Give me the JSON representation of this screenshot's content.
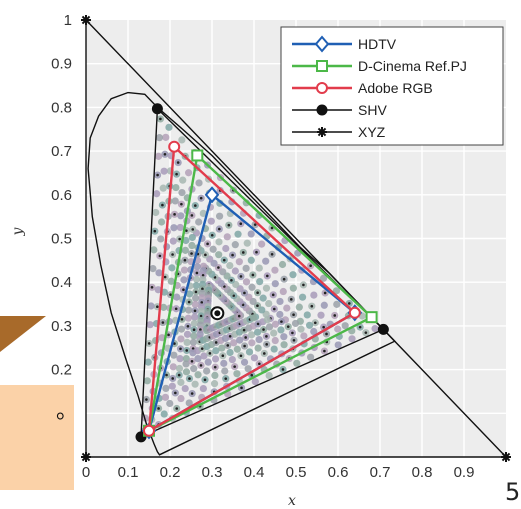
{
  "chart_data": {
    "type": "line",
    "title": "",
    "xlabel": "x",
    "ylabel": "y",
    "xlim": [
      0,
      1.0
    ],
    "ylim": [
      0,
      1.0
    ],
    "x_ticks": [
      "0",
      "0.1",
      "0.2",
      "0.3",
      "0.4",
      "0.5",
      "0.6",
      "0.7",
      "0.8",
      "0.9"
    ],
    "y_ticks": [
      "0",
      "0.1",
      "0.2",
      "0.3",
      "0.4",
      "0.5",
      "0.6",
      "0.7",
      "0.8",
      "0.9",
      "1"
    ],
    "grid": true,
    "legend_position": "top-right",
    "series": [
      {
        "name": "HDTV",
        "color": "#1f5fb4",
        "marker": "diamond",
        "points": [
          [
            0.64,
            0.33
          ],
          [
            0.3,
            0.6
          ],
          [
            0.15,
            0.06
          ]
        ]
      },
      {
        "name": "D-Cinema Ref.PJ",
        "color": "#4cb848",
        "marker": "square",
        "points": [
          [
            0.68,
            0.32
          ],
          [
            0.265,
            0.69
          ],
          [
            0.15,
            0.06
          ]
        ]
      },
      {
        "name": "Adobe RGB",
        "color": "#e23c4c",
        "marker": "circle-open",
        "points": [
          [
            0.64,
            0.33
          ],
          [
            0.21,
            0.71
          ],
          [
            0.15,
            0.06
          ]
        ]
      },
      {
        "name": "SHV",
        "color": "#111111",
        "marker": "circle-filled",
        "points": [
          [
            0.708,
            0.292
          ],
          [
            0.17,
            0.797
          ],
          [
            0.131,
            0.046
          ]
        ]
      },
      {
        "name": "XYZ",
        "color": "#111111",
        "marker": "asterisk",
        "points": [
          [
            1.0,
            0.0
          ],
          [
            0.0,
            1.0
          ],
          [
            0.0,
            0.0
          ]
        ]
      }
    ],
    "white_point": [
      0.3127,
      0.329
    ],
    "spectral_locus": [
      [
        0.175,
        0.005
      ],
      [
        0.17,
        0.012
      ],
      [
        0.162,
        0.03
      ],
      [
        0.144,
        0.075
      ],
      [
        0.124,
        0.14
      ],
      [
        0.093,
        0.23
      ],
      [
        0.06,
        0.33
      ],
      [
        0.035,
        0.44
      ],
      [
        0.015,
        0.55
      ],
      [
        0.005,
        0.66
      ],
      [
        0.01,
        0.73
      ],
      [
        0.03,
        0.78
      ],
      [
        0.06,
        0.82
      ],
      [
        0.1,
        0.834
      ],
      [
        0.14,
        0.83
      ],
      [
        0.17,
        0.8
      ],
      [
        0.23,
        0.75
      ],
      [
        0.3,
        0.69
      ],
      [
        0.37,
        0.62
      ],
      [
        0.44,
        0.55
      ],
      [
        0.51,
        0.48
      ],
      [
        0.58,
        0.42
      ],
      [
        0.64,
        0.36
      ],
      [
        0.7,
        0.3
      ],
      [
        0.735,
        0.265
      ]
    ]
  },
  "side": {
    "text": "。",
    "corner": "5"
  }
}
